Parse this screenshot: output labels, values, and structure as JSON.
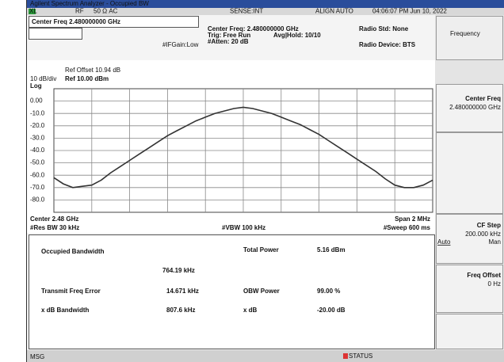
{
  "window": {
    "title": "Agilent Spectrum Analyzer - Occupied BW"
  },
  "status_bar": {
    "items": [
      "XL",
      "RF",
      "50 Ω AC",
      "SENSE:INT",
      "ALIGN AUTO",
      "04:06:07 PM Jun 10, 2022"
    ]
  },
  "header": {
    "center_freq": "Center Freq 2.480000000 GHz",
    "if_gain": "#IFGain:Low",
    "settings": [
      "Center Freq: 2.480000000 GHz",
      "Trig: Free Run",
      "#Atten: 20 dB"
    ],
    "avg_hold": "Avg|Hold: 10/10",
    "radio_std": "Radio Std: None",
    "radio_device": "Radio Device: BTS"
  },
  "chart_data": {
    "type": "line",
    "ref_offset": "Ref Offset 10.94 dB",
    "scale": "10 dB/div",
    "ref_level": "Ref 10.00 dBm",
    "scale_type": "Log",
    "x": [
      2.479,
      2.47905,
      2.4791,
      2.47915,
      2.4792,
      2.47925,
      2.4793,
      2.47935,
      2.4794,
      2.47945,
      2.4795,
      2.47955,
      2.4796,
      2.47965,
      2.4797,
      2.47975,
      2.4798,
      2.47985,
      2.4799,
      2.47995,
      2.48,
      2.48005,
      2.4801,
      2.48015,
      2.4802,
      2.48025,
      2.4803,
      2.48035,
      2.4804,
      2.48045,
      2.4805,
      2.48055,
      2.4806,
      2.48065,
      2.4807,
      2.48075,
      2.4808,
      2.48085,
      2.4809,
      2.48095,
      2.481
    ],
    "values": [
      -62,
      -67,
      -70,
      -69,
      -68,
      -64,
      -58,
      -53,
      -48,
      -43,
      -38,
      -33,
      -28,
      -24,
      -20,
      -16,
      -13,
      -10,
      -8,
      -6,
      -5,
      -6,
      -8,
      -10,
      -13,
      -16,
      -19,
      -23,
      -27,
      -32,
      -37,
      -42,
      -47,
      -52,
      -57,
      -63,
      -68,
      -70,
      -70,
      -68,
      -64
    ],
    "color": "#333333",
    "xlim": [
      2.479,
      2.481
    ],
    "ylim": [
      -90,
      10
    ],
    "yticks": [
      {
        "value": 0,
        "label": "0.00"
      },
      {
        "value": -10,
        "label": "-10.0"
      },
      {
        "value": -20,
        "label": "-20.0"
      },
      {
        "value": -30,
        "label": "-30.0"
      },
      {
        "value": -40,
        "label": "-40.0"
      },
      {
        "value": -50,
        "label": "-50.0"
      },
      {
        "value": -60,
        "label": "-60.0"
      },
      {
        "value": -70,
        "label": "-70.0"
      },
      {
        "value": -80,
        "label": "-80.0"
      }
    ],
    "grid": true,
    "center": "Center 2.48 GHz",
    "res_bw": "#Res BW 30 kHz",
    "vbw": "#VBW 100 kHz",
    "span": "Span 2 MHz",
    "sweep": "#Sweep 600 ms"
  },
  "results": {
    "obw_label": "Occupied Bandwidth",
    "obw_value": "764.19 kHz",
    "total_power_label": "Total Power",
    "total_power_value": "5.16 dBm",
    "rows": [
      [
        "Transmit Freq Error",
        "14.671 kHz",
        "OBW Power",
        "99.00 %"
      ],
      [
        "x dB Bandwidth",
        "807.6 kHz",
        "x dB",
        "-20.00 dB"
      ]
    ]
  },
  "softkeys": {
    "menu": "Frequency",
    "keys": [
      {
        "label": "Center Freq",
        "value": "2.480000000 GHz"
      },
      {
        "label": "CF Step",
        "value": "200.000 kHz",
        "options": [
          "Auto",
          "Man"
        ]
      },
      {
        "label": "Freq Offset",
        "value": "0 Hz"
      }
    ]
  },
  "message_bar": {
    "msg": "MSG",
    "status": "STATUS"
  }
}
